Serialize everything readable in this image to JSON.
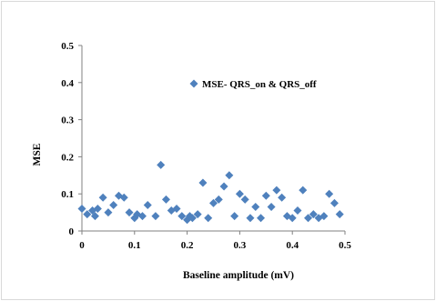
{
  "chart_data": {
    "type": "scatter",
    "title": "",
    "xlabel": "Baseline amplitude (mV)",
    "ylabel": "MSE",
    "xlim": [
      0,
      0.5
    ],
    "ylim": [
      0,
      0.5
    ],
    "x_ticks": [
      "0",
      "0.1",
      "0.2",
      "0.3",
      "0.4",
      "0.5"
    ],
    "y_ticks": [
      "0",
      "0.1",
      "0.2",
      "0.3",
      "0.4",
      "0.5"
    ],
    "grid": false,
    "legend_position": "top-right",
    "marker": "diamond",
    "marker_color": "#4f81bd",
    "series": [
      {
        "name": "MSE- QRS_on & QRS_off",
        "x": [
          0.0,
          0.01,
          0.02,
          0.025,
          0.03,
          0.04,
          0.05,
          0.06,
          0.07,
          0.08,
          0.09,
          0.1,
          0.105,
          0.115,
          0.125,
          0.14,
          0.15,
          0.16,
          0.17,
          0.18,
          0.19,
          0.2,
          0.205,
          0.21,
          0.22,
          0.23,
          0.24,
          0.25,
          0.26,
          0.27,
          0.28,
          0.29,
          0.3,
          0.31,
          0.32,
          0.33,
          0.34,
          0.35,
          0.36,
          0.37,
          0.38,
          0.39,
          0.4,
          0.41,
          0.42,
          0.43,
          0.44,
          0.45,
          0.46,
          0.47,
          0.48,
          0.49
        ],
        "y": [
          0.06,
          0.045,
          0.055,
          0.04,
          0.06,
          0.09,
          0.05,
          0.07,
          0.095,
          0.09,
          0.05,
          0.035,
          0.045,
          0.04,
          0.07,
          0.04,
          0.178,
          0.085,
          0.055,
          0.06,
          0.04,
          0.03,
          0.04,
          0.035,
          0.045,
          0.13,
          0.035,
          0.075,
          0.085,
          0.12,
          0.15,
          0.04,
          0.1,
          0.085,
          0.035,
          0.065,
          0.035,
          0.095,
          0.065,
          0.11,
          0.09,
          0.04,
          0.035,
          0.055,
          0.11,
          0.035,
          0.045,
          0.035,
          0.04,
          0.1,
          0.075,
          0.045
        ]
      }
    ]
  }
}
